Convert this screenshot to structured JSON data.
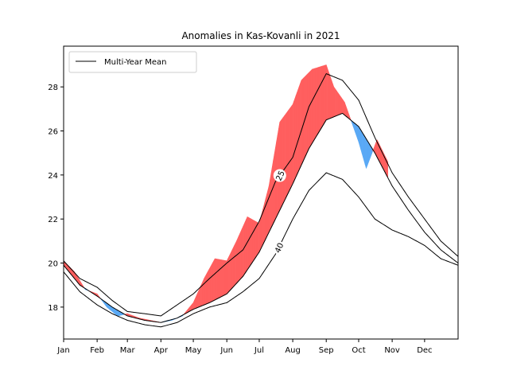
{
  "chart_data": {
    "type": "area",
    "title": "Anomalies in Kas-Kovanli in 2021",
    "xlabel": "",
    "ylabel": "",
    "xlim": [
      0,
      365
    ],
    "ylim": [
      16.55,
      29.85
    ],
    "x_ticks": [
      {
        "label": "Jan",
        "day": 0
      },
      {
        "label": "Feb",
        "day": 31
      },
      {
        "label": "Mar",
        "day": 59
      },
      {
        "label": "Apr",
        "day": 90
      },
      {
        "label": "May",
        "day": 120
      },
      {
        "label": "Jun",
        "day": 151
      },
      {
        "label": "Jul",
        "day": 181
      },
      {
        "label": "Aug",
        "day": 212
      },
      {
        "label": "Sep",
        "day": 243
      },
      {
        "label": "Oct",
        "day": 273
      },
      {
        "label": "Nov",
        "day": 304
      },
      {
        "label": "Dec",
        "day": 334
      }
    ],
    "y_ticks": [
      18,
      20,
      22,
      24,
      26,
      28
    ],
    "grid": false,
    "legend": {
      "position": "top-left",
      "entries": [
        "Multi-Year Mean"
      ]
    },
    "colors": {
      "above": "#ff5f5f",
      "below": "#5aa9f5",
      "mean": "#000000"
    },
    "mean_line": {
      "name": "Multi-Year Mean",
      "x": [
        0,
        15,
        31,
        45,
        59,
        75,
        90,
        105,
        120,
        135,
        151,
        166,
        181,
        196,
        212,
        227,
        243,
        258,
        273,
        288,
        304,
        319,
        334,
        349,
        365
      ],
      "y": [
        19.9,
        19.0,
        18.5,
        18.0,
        17.6,
        17.4,
        17.3,
        17.5,
        17.9,
        18.2,
        18.6,
        19.4,
        20.5,
        22.0,
        23.6,
        25.2,
        26.5,
        26.8,
        26.2,
        25.0,
        23.5,
        22.4,
        21.4,
        20.6,
        20.0
      ]
    },
    "upper_envelope": {
      "x": [
        0,
        15,
        31,
        45,
        59,
        75,
        90,
        105,
        120,
        135,
        151,
        166,
        181,
        196,
        212,
        227,
        243,
        258,
        273,
        288,
        304,
        319,
        334,
        349,
        365
      ],
      "y": [
        20.1,
        19.3,
        18.9,
        18.3,
        17.8,
        17.7,
        17.6,
        18.1,
        18.6,
        19.3,
        20.0,
        20.6,
        21.9,
        23.7,
        24.8,
        27.1,
        28.6,
        28.3,
        27.4,
        25.7,
        24.1,
        23.0,
        22.0,
        21.0,
        20.3
      ]
    },
    "lower_envelope": {
      "x": [
        0,
        15,
        31,
        45,
        59,
        75,
        90,
        105,
        120,
        135,
        151,
        166,
        181,
        196,
        212,
        227,
        243,
        258,
        273,
        288,
        304,
        319,
        334,
        349,
        365
      ],
      "y": [
        19.6,
        18.7,
        18.1,
        17.7,
        17.4,
        17.2,
        17.1,
        17.3,
        17.7,
        18.0,
        18.2,
        18.7,
        19.3,
        20.4,
        22.0,
        23.3,
        24.1,
        23.8,
        23.0,
        22.0,
        21.5,
        21.2,
        20.8,
        20.2,
        19.9
      ]
    },
    "year_series": {
      "name": "2021",
      "x": [
        0,
        10,
        20,
        31,
        40,
        50,
        59,
        70,
        80,
        90,
        100,
        110,
        120,
        130,
        140,
        151,
        160,
        170,
        181,
        190,
        200,
        212,
        220,
        230,
        243,
        250,
        260,
        273,
        280,
        290,
        300
      ],
      "y": [
        20.1,
        19.6,
        18.8,
        18.6,
        18.0,
        17.6,
        17.7,
        17.5,
        17.4,
        17.3,
        17.4,
        17.6,
        18.2,
        19.3,
        20.2,
        20.1,
        21.0,
        22.1,
        21.8,
        23.5,
        26.4,
        27.2,
        28.3,
        28.8,
        29.0,
        28.0,
        27.3,
        25.5,
        24.3,
        25.6,
        24.6
      ]
    },
    "contour_labels": [
      "25",
      "40"
    ]
  }
}
